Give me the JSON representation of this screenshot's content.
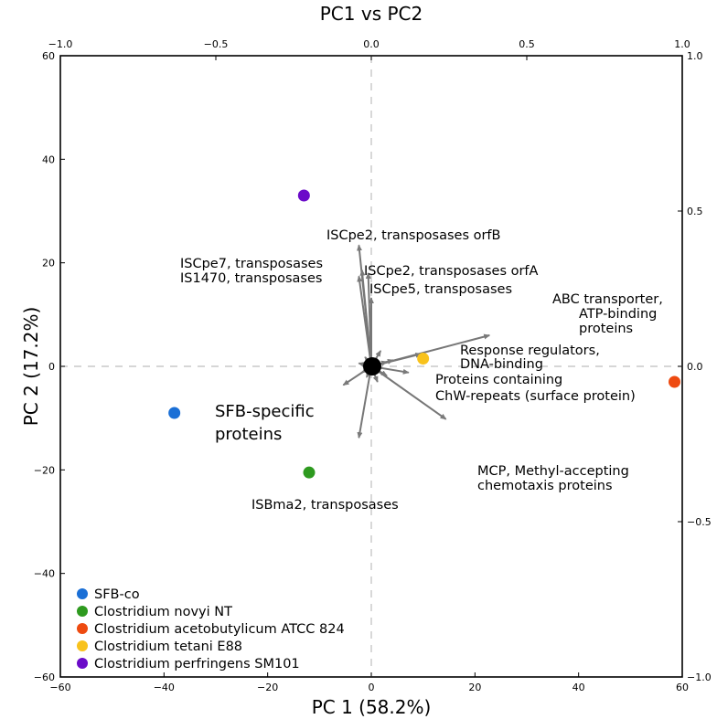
{
  "chart_data": {
    "type": "scatter",
    "title": "PC1 vs PC2",
    "xlabel": "PC 1 (58.2%)",
    "ylabel": "PC 2 (17.2%)",
    "xlim": [
      -60,
      60
    ],
    "ylim": [
      -60,
      60
    ],
    "x_ticks": [
      "−60",
      "−40",
      "−20",
      "0",
      "20",
      "40",
      "60"
    ],
    "y_ticks": [
      "−60",
      "−40",
      "−20",
      "0",
      "20",
      "40",
      "60"
    ],
    "top_axis": {
      "lim": [
        -1.0,
        1.0
      ],
      "ticks": [
        "−1.0",
        "−0.5",
        "0.0",
        "0.5",
        "1.0"
      ]
    },
    "right_axis": {
      "lim": [
        -1.0,
        1.0
      ],
      "ticks": [
        "−1.0",
        "−0.5",
        "0.0",
        "0.5",
        "1.0"
      ]
    },
    "grid": false,
    "zero_lines": true,
    "legend_position": "lower-left",
    "series": [
      {
        "name": "SFB-co",
        "color": "#1a6fd6",
        "x": [
          -38
        ],
        "y": [
          -9
        ]
      },
      {
        "name": "Clostridium novyi NT",
        "color": "#2e9a1f",
        "x": [
          -12
        ],
        "y": [
          -20.5
        ]
      },
      {
        "name": "Clostridium acetobutylicum ATCC 824",
        "color": "#ee4a10",
        "x": [
          58.5
        ],
        "y": [
          -3
        ]
      },
      {
        "name": "Clostridium tetani E88",
        "color": "#f8c21c",
        "x": [
          10
        ],
        "y": [
          1.5
        ]
      },
      {
        "name": "Clostridium perfringens SM101",
        "color": "#6b0bc9",
        "x": [
          -13
        ],
        "y": [
          33
        ]
      }
    ],
    "loadings": [
      {
        "x": -0.04,
        "y": 0.39,
        "label": "ISCpe2, transposases orfB"
      },
      {
        "x": -0.03,
        "y": 0.31,
        "label": "ISCpe7, transposases"
      },
      {
        "x": -0.04,
        "y": 0.29,
        "label": "IS1470, transposases"
      },
      {
        "x": -0.01,
        "y": 0.3,
        "label": "ISCpe2, transposases orfA"
      },
      {
        "x": 0.0,
        "y": 0.22,
        "label": "ISCpe5, transposases"
      },
      {
        "x": 0.38,
        "y": 0.1,
        "label": "ABC transporter, ATP-binding proteins"
      },
      {
        "x": 0.16,
        "y": 0.04,
        "label": "Response regulators, DNA-binding"
      },
      {
        "x": 0.12,
        "y": -0.02,
        "label": "Proteins containing ChW-repeats (surface protein)"
      },
      {
        "x": 0.24,
        "y": -0.17,
        "label": "MCP, Methyl-accepting chemotaxis proteins"
      },
      {
        "x": -0.04,
        "y": -0.23,
        "label": "ISBma2, transposases"
      },
      {
        "x": -0.09,
        "y": -0.06,
        "label": ""
      },
      {
        "x": -0.03,
        "y": -0.02,
        "label": ""
      },
      {
        "x": 0.05,
        "y": -0.03,
        "label": ""
      },
      {
        "x": 0.07,
        "y": 0.02,
        "label": ""
      },
      {
        "x": -0.02,
        "y": 0.03,
        "label": ""
      },
      {
        "x": 0.03,
        "y": 0.05,
        "label": ""
      },
      {
        "x": -0.04,
        "y": 0.01,
        "label": ""
      },
      {
        "x": 0.02,
        "y": -0.05,
        "label": ""
      },
      {
        "x": 0.05,
        "y": 0.015,
        "label": ""
      },
      {
        "x": -0.015,
        "y": -0.035,
        "label": ""
      }
    ],
    "annotations": [
      "SFB-specific",
      "proteins"
    ]
  }
}
